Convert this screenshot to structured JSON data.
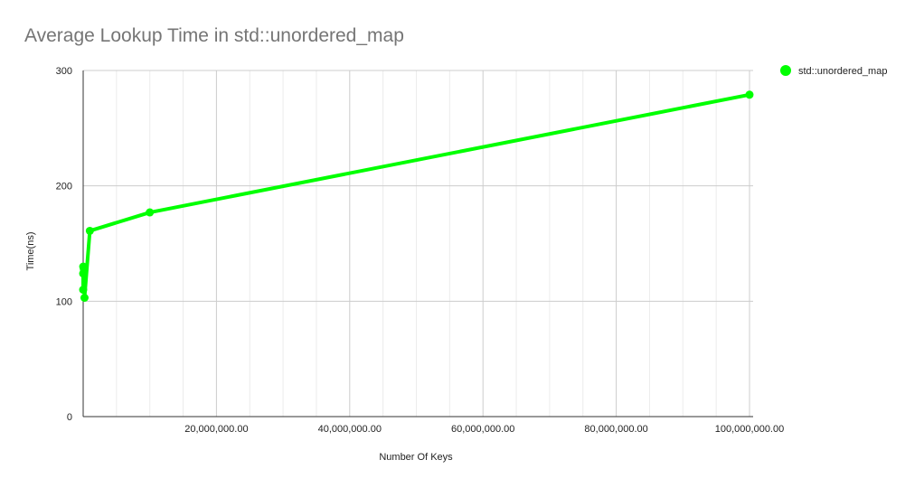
{
  "chart_data": {
    "type": "line",
    "title": "Average Lookup Time in std::unordered_map",
    "xlabel": "Number Of Keys",
    "ylabel": "Time(ns)",
    "xlim": [
      0,
      100000000
    ],
    "ylim": [
      0,
      300
    ],
    "x_ticks": [
      20000000,
      40000000,
      60000000,
      80000000,
      100000000
    ],
    "x_tick_labels": [
      "20,000,000.00",
      "40,000,000.00",
      "60,000,000.00",
      "80,000,000.00",
      "100,000,000.00"
    ],
    "y_ticks": [
      0,
      100,
      200,
      300
    ],
    "y_tick_labels": [
      "0",
      "100",
      "200",
      "300"
    ],
    "grid": true,
    "legend_position": "right",
    "series": [
      {
        "name": "std::unordered_map",
        "color": "#00ff00",
        "points": [
          {
            "x": 100,
            "y": 110
          },
          {
            "x": 1000,
            "y": 124
          },
          {
            "x": 10000,
            "y": 130
          },
          {
            "x": 100000,
            "y": 128
          },
          {
            "x": 200000,
            "y": 103
          },
          {
            "x": 1000000,
            "y": 161
          },
          {
            "x": 10000000,
            "y": 177
          },
          {
            "x": 100000000,
            "y": 279
          }
        ]
      }
    ]
  }
}
